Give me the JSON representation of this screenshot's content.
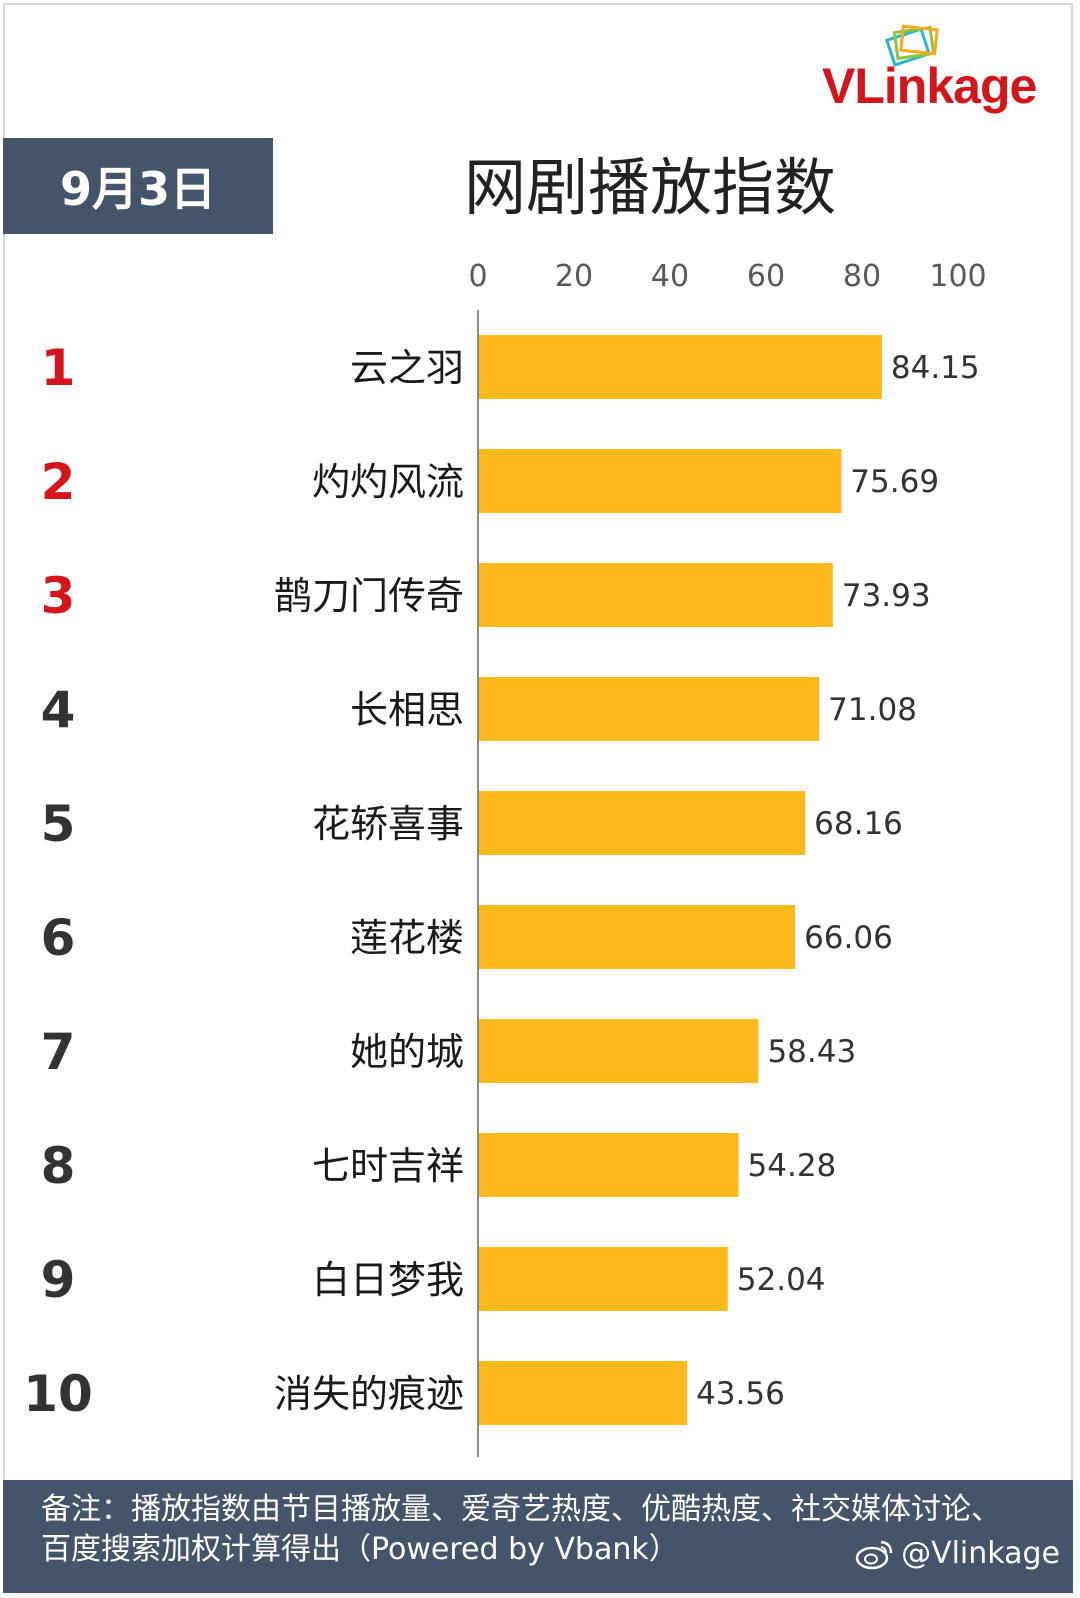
{
  "logo": {
    "text_v": "VL",
    "text_rest": "inkage"
  },
  "date": "9月3日",
  "title": "网剧播放指数",
  "colors": {
    "bar": "#ffb81c",
    "badge": "#44546a",
    "rank_top": "#d4161c",
    "rank_rest": "#333333"
  },
  "chart_data": {
    "type": "bar",
    "orientation": "horizontal",
    "title": "网剧播放指数",
    "xlim": [
      0,
      100
    ],
    "x_ticks": [
      0,
      20,
      40,
      60,
      80,
      100
    ],
    "grid": false,
    "ranks": [
      "1",
      "2",
      "3",
      "4",
      "5",
      "6",
      "7",
      "8",
      "9",
      "10"
    ],
    "categories": [
      "云之羽",
      "灼灼风流",
      "鹊刀门传奇",
      "长相思",
      "花轿喜事",
      "莲花楼",
      "她的城",
      "七时吉祥",
      "白日梦我",
      "消失的痕迹"
    ],
    "values": [
      84.15,
      75.69,
      73.93,
      71.08,
      68.16,
      66.06,
      58.43,
      54.28,
      52.04,
      43.56
    ]
  },
  "footer": {
    "note": "备注：播放指数由节目播放量、爱奇艺热度、优酷热度、社交媒体讨论、百度搜索加权计算得出（Powered by Vbank）",
    "watermark": "@Vlinkage",
    "watermark_icon": "weibo-icon"
  }
}
